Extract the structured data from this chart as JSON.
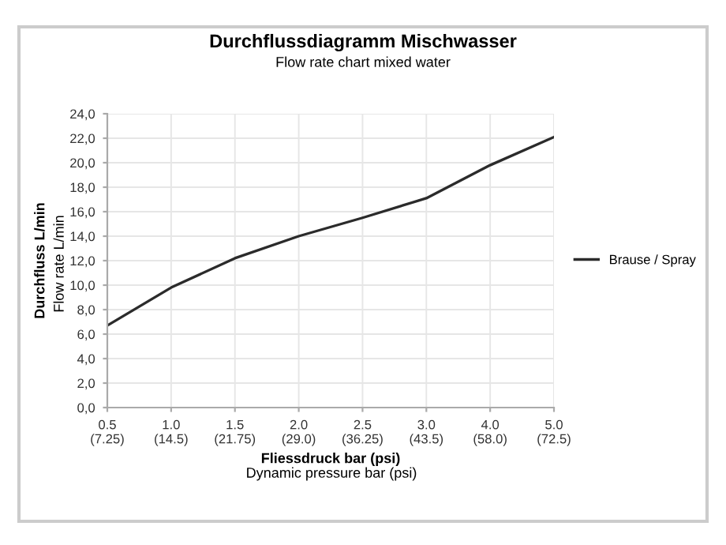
{
  "chart_data": {
    "type": "line",
    "title": "Durchflussdiagramm Mischwasser",
    "subtitle": "Flow rate chart mixed water",
    "xlabel": "Fliessdruck bar (psi)",
    "ylabel": "Durchfluss L/min",
    "annotations": [
      "Dynamic pressure bar (psi)",
      "Flow rate L/min"
    ],
    "categories": [
      "0.5\n(7.25)",
      "1.0\n(14.5)",
      "1.5\n(21.75)",
      "2.0\n(29.0)",
      "2.5\n(36.25)",
      "3.0\n(43.5)",
      "4.0\n(58.0)",
      "5.0\n(72.5)"
    ],
    "series": [
      {
        "name": "Brause / Spray",
        "color": "#2b2b2b",
        "values": [
          6.7,
          9.8,
          12.2,
          14.0,
          15.5,
          17.1,
          19.8,
          22.1
        ]
      }
    ],
    "ylim": [
      0,
      24
    ],
    "yticks": [
      {
        "value": 0,
        "label": "0,0"
      },
      {
        "value": 2,
        "label": "2,0"
      },
      {
        "value": 4,
        "label": "4,0"
      },
      {
        "value": 6,
        "label": "6,0"
      },
      {
        "value": 8,
        "label": "8,0"
      },
      {
        "value": 10,
        "label": "10,0"
      },
      {
        "value": 12,
        "label": "12,0"
      },
      {
        "value": 14,
        "label": "14,0"
      },
      {
        "value": 16,
        "label": "16,0"
      },
      {
        "value": 18,
        "label": "18,0"
      },
      {
        "value": 20,
        "label": "20,0"
      },
      {
        "value": 22,
        "label": "22,0"
      },
      {
        "value": 24,
        "label": "24,0"
      }
    ],
    "grid": true,
    "legend": "right",
    "marker": "none",
    "line_style": "solid"
  }
}
